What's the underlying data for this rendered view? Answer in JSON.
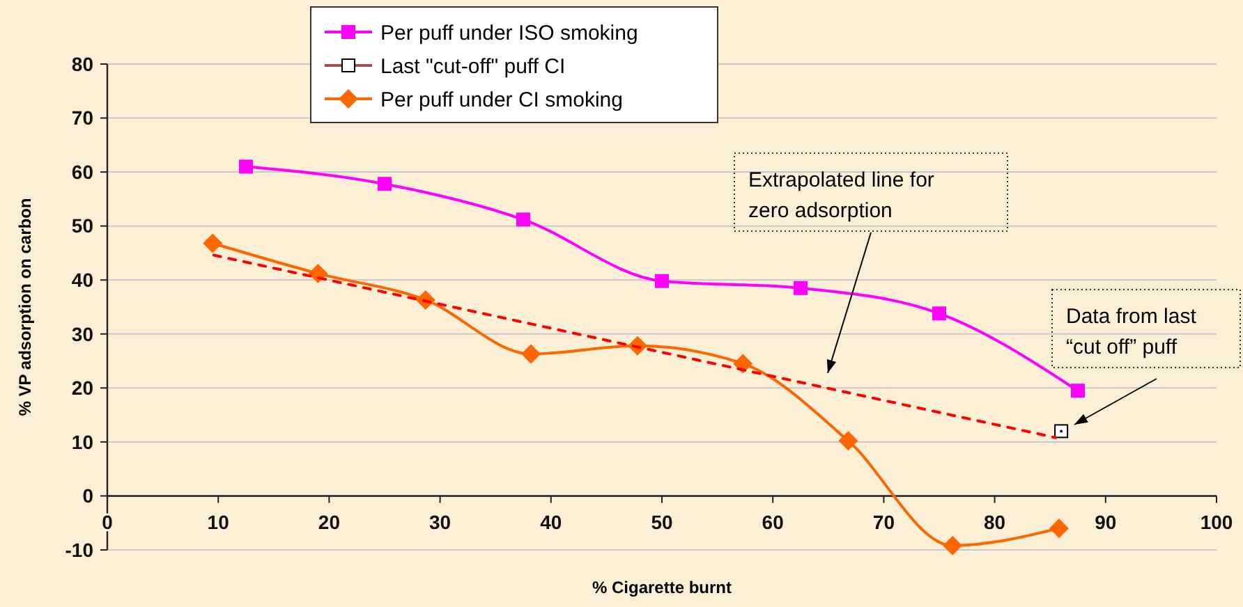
{
  "chart_data": {
    "type": "line",
    "xlabel": "% Cigarette burnt",
    "ylabel": "% VP adsorption on carbon",
    "xlim": [
      0,
      100
    ],
    "xticks": [
      0,
      10,
      20,
      30,
      40,
      50,
      60,
      70,
      80,
      90,
      100
    ],
    "ylim": [
      -10,
      80
    ],
    "yticks": [
      -10,
      0,
      10,
      20,
      30,
      40,
      50,
      60,
      70,
      80
    ],
    "grid": "y",
    "legend": "top",
    "series": [
      {
        "name": "Per puff under ISO smoking",
        "color": "#ff00ff",
        "marker": "square",
        "x": [
          12.5,
          25,
          37.5,
          50,
          62.5,
          75,
          87.5
        ],
        "values": [
          61,
          57.8,
          51.2,
          39.8,
          38.5,
          33.8,
          19.5
        ]
      },
      {
        "name": "Last \"cut-off\" puff CI",
        "color": "#000000",
        "marker": "square",
        "line_style": "none",
        "x": [
          86
        ],
        "values": [
          12
        ]
      },
      {
        "name": "Per puff under CI smoking",
        "color": "#ff6600",
        "marker": "diamond",
        "x": [
          9.5,
          19,
          28.7,
          38.2,
          47.8,
          57.3,
          66.8,
          76.2,
          85.8
        ],
        "values": [
          46.8,
          41.2,
          36.3,
          26.3,
          27.8,
          24.5,
          10.2,
          -9.2,
          -6
        ]
      },
      {
        "color": "#ff0000",
        "marker": "none",
        "line_style": "dashed",
        "x": [
          9.6,
          85.5
        ],
        "values": [
          44.6,
          10.8
        ]
      }
    ],
    "annotations": [
      "Extrapolated line for zero adsorption",
      "Data from last “cut off” puff"
    ]
  }
}
